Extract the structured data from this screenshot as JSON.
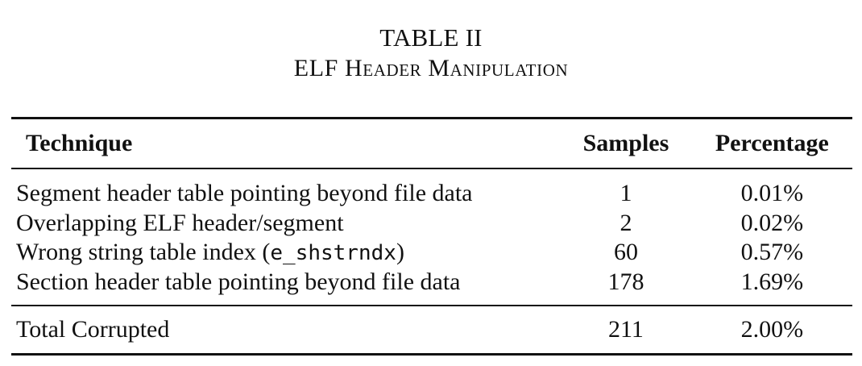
{
  "caption": {
    "number": "TABLE II",
    "title": "ELF Header Manipulation"
  },
  "table": {
    "headers": [
      "Technique",
      "Samples",
      "Percentage"
    ],
    "rows": [
      {
        "technique": "Segment header table pointing beyond file data",
        "samples": "1",
        "percentage": "0.01%"
      },
      {
        "technique": "Overlapping ELF header/segment",
        "samples": "2",
        "percentage": "0.02%"
      },
      {
        "technique_prefix": "Wrong string table index (",
        "technique_code": "e_shstrndx",
        "technique_suffix": ")",
        "samples": "60",
        "percentage": "0.57%"
      },
      {
        "technique": "Section header table pointing beyond file data",
        "samples": "178",
        "percentage": "1.69%"
      }
    ],
    "total": {
      "label": "Total Corrupted",
      "samples": "211",
      "percentage": "2.00%"
    }
  }
}
